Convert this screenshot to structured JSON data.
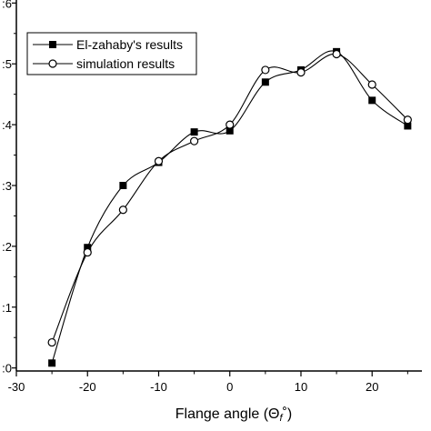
{
  "chart_data": {
    "type": "line",
    "xlabel": "Flange angle (Θ",
    "xlabel_subscript": "f",
    "xlabel_suffix": "˚)",
    "ylabel": "",
    "xlim": [
      -30,
      27
    ],
    "ylim": [
      -0.05,
      6.05
    ],
    "x_ticks": [
      -30,
      -20,
      -10,
      0,
      10,
      20
    ],
    "x_tick_labels": [
      "-30",
      "-20",
      "-10",
      "0",
      "10",
      "20"
    ],
    "y_ticks": [
      0,
      1,
      2,
      3,
      4,
      5,
      6
    ],
    "y_tick_labels": [
      ":0",
      ":1",
      ":2",
      ":3",
      ":4",
      ":5",
      ":6"
    ],
    "grid": false,
    "legend_position": "top-left",
    "series": [
      {
        "name": "El-zahaby's results",
        "marker": "filled-square",
        "color": "#000000",
        "x": [
          -25,
          -20,
          -15,
          -10,
          -5,
          0,
          5,
          10,
          15,
          20,
          25
        ],
        "y": [
          0.08,
          1.98,
          3.0,
          3.38,
          3.88,
          3.9,
          4.7,
          4.9,
          5.2,
          4.4,
          3.98
        ]
      },
      {
        "name": "simulation results",
        "marker": "open-circle",
        "color": "#000000",
        "x": [
          -25,
          -20,
          -15,
          -10,
          -5,
          0,
          5,
          10,
          15,
          20,
          25
        ],
        "y": [
          0.42,
          1.9,
          2.6,
          3.4,
          3.73,
          4.0,
          4.9,
          4.86,
          5.16,
          4.66,
          4.08
        ]
      }
    ]
  }
}
